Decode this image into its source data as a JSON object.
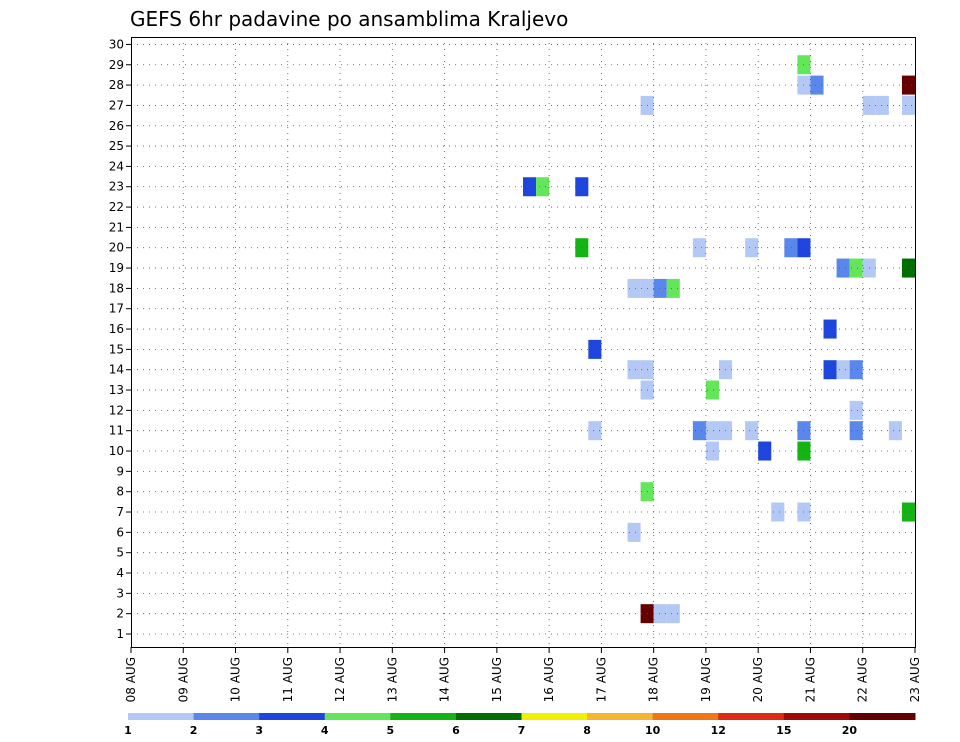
{
  "chart_data": {
    "type": "heatmap",
    "title": "GEFS 6hr padavine po ansamblima Kraljevo",
    "xlabel": "",
    "ylabel": "",
    "x_categories": [
      "08 AUG",
      "09 AUG",
      "10 AUG",
      "11 AUG",
      "12 AUG",
      "13 AUG",
      "14 AUG",
      "15 AUG",
      "16 AUG",
      "17 AUG",
      "18 AUG",
      "19 AUG",
      "20 AUG",
      "21 AUG",
      "22 AUG",
      "23 AUG"
    ],
    "x_range_days": [
      0,
      15
    ],
    "y_members": [
      1,
      2,
      3,
      4,
      5,
      6,
      7,
      8,
      9,
      10,
      11,
      12,
      13,
      14,
      15,
      16,
      17,
      18,
      19,
      20,
      21,
      22,
      23,
      24,
      25,
      26,
      27,
      28,
      29,
      30
    ],
    "grid": true,
    "colorbar": {
      "position": "bottom",
      "thresholds": [
        "1",
        "2",
        "3",
        "4",
        "5",
        "6",
        "7",
        "8",
        "10",
        "12",
        "15",
        "20"
      ],
      "colors": [
        "#b4c8f5",
        "#5a87eb",
        "#1e46dc",
        "#64e65a",
        "#14b414",
        "#006e00",
        "#f0f000",
        "#f5b432",
        "#f07814",
        "#dc2d14",
        "#a00a0a",
        "#640000"
      ]
    },
    "cells": [
      {
        "member": 2,
        "day": 9.75,
        "value": 25
      },
      {
        "member": 2,
        "day": 10.0,
        "value": 1.5
      },
      {
        "member": 2,
        "day": 10.25,
        "value": 1.5
      },
      {
        "member": 6,
        "day": 9.5,
        "value": 1.5
      },
      {
        "member": 7,
        "day": 12.25,
        "value": 1.5
      },
      {
        "member": 7,
        "day": 12.75,
        "value": 1.5
      },
      {
        "member": 7,
        "day": 14.75,
        "value": 5.5
      },
      {
        "member": 8,
        "day": 9.75,
        "value": 4.5
      },
      {
        "member": 10,
        "day": 11.0,
        "value": 1.5
      },
      {
        "member": 10,
        "day": 12.0,
        "value": 3.5
      },
      {
        "member": 10,
        "day": 12.75,
        "value": 5.5
      },
      {
        "member": 11,
        "day": 8.75,
        "value": 1.5
      },
      {
        "member": 11,
        "day": 10.75,
        "value": 2.5
      },
      {
        "member": 11,
        "day": 11.0,
        "value": 1.5
      },
      {
        "member": 11,
        "day": 11.25,
        "value": 1.5
      },
      {
        "member": 11,
        "day": 11.75,
        "value": 1.5
      },
      {
        "member": 11,
        "day": 12.75,
        "value": 2.5
      },
      {
        "member": 11,
        "day": 13.75,
        "value": 2.5
      },
      {
        "member": 11,
        "day": 14.5,
        "value": 1.5
      },
      {
        "member": 12,
        "day": 13.75,
        "value": 1.5
      },
      {
        "member": 12,
        "day": 15.0,
        "value": 3.5
      },
      {
        "member": 13,
        "day": 9.75,
        "value": 1.5
      },
      {
        "member": 13,
        "day": 11.0,
        "value": 4.5
      },
      {
        "member": 14,
        "day": 9.5,
        "value": 1.5
      },
      {
        "member": 14,
        "day": 9.75,
        "value": 1.5
      },
      {
        "member": 14,
        "day": 11.25,
        "value": 1.5
      },
      {
        "member": 14,
        "day": 13.25,
        "value": 3.5
      },
      {
        "member": 14,
        "day": 13.5,
        "value": 1.5
      },
      {
        "member": 14,
        "day": 13.75,
        "value": 2.5
      },
      {
        "member": 14,
        "day": 15.0,
        "value": 2.5
      },
      {
        "member": 15,
        "day": 8.75,
        "value": 3.5
      },
      {
        "member": 16,
        "day": 13.25,
        "value": 3.5
      },
      {
        "member": 18,
        "day": 9.5,
        "value": 1.5
      },
      {
        "member": 18,
        "day": 9.75,
        "value": 1.5
      },
      {
        "member": 18,
        "day": 10.0,
        "value": 2.5
      },
      {
        "member": 18,
        "day": 10.25,
        "value": 4.5
      },
      {
        "member": 19,
        "day": 13.5,
        "value": 2.5
      },
      {
        "member": 19,
        "day": 13.75,
        "value": 4.5
      },
      {
        "member": 19,
        "day": 14.0,
        "value": 1.5
      },
      {
        "member": 19,
        "day": 14.75,
        "value": 6.5
      },
      {
        "member": 19,
        "day": 15.0,
        "value": 5.5
      },
      {
        "member": 20,
        "day": 8.5,
        "value": 5.5
      },
      {
        "member": 20,
        "day": 10.75,
        "value": 1.5
      },
      {
        "member": 20,
        "day": 11.75,
        "value": 1.5
      },
      {
        "member": 20,
        "day": 12.5,
        "value": 2.5
      },
      {
        "member": 20,
        "day": 12.75,
        "value": 3.5
      },
      {
        "member": 23,
        "day": 7.5,
        "value": 3.5
      },
      {
        "member": 23,
        "day": 7.75,
        "value": 4.5
      },
      {
        "member": 23,
        "day": 8.5,
        "value": 3.5
      },
      {
        "member": 26,
        "day": 15.0,
        "value": 1.5
      },
      {
        "member": 27,
        "day": 9.75,
        "value": 1.5
      },
      {
        "member": 27,
        "day": 14.0,
        "value": 1.5
      },
      {
        "member": 27,
        "day": 14.25,
        "value": 1.5
      },
      {
        "member": 27,
        "day": 14.75,
        "value": 1.5
      },
      {
        "member": 28,
        "day": 12.75,
        "value": 1.5
      },
      {
        "member": 28,
        "day": 13.0,
        "value": 2.5
      },
      {
        "member": 28,
        "day": 14.75,
        "value": 25
      },
      {
        "member": 29,
        "day": 12.75,
        "value": 4.5
      },
      {
        "member": 29,
        "day": 15.0,
        "value": 1.5
      }
    ]
  }
}
